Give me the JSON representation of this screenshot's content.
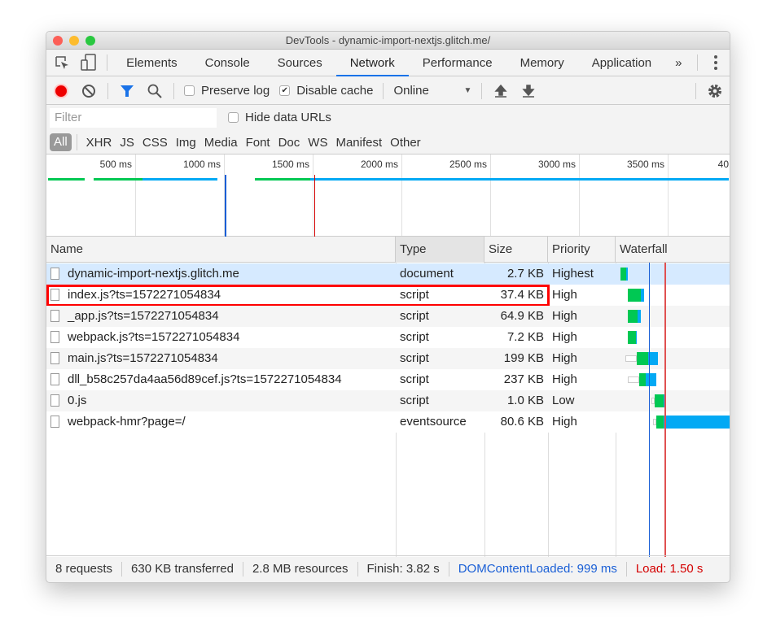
{
  "window": {
    "title": "DevTools - dynamic-import-nextjs.glitch.me/"
  },
  "tabs": [
    {
      "label": "Elements"
    },
    {
      "label": "Console"
    },
    {
      "label": "Sources"
    },
    {
      "label": "Network",
      "active": true
    },
    {
      "label": "Performance"
    },
    {
      "label": "Memory"
    },
    {
      "label": "Application"
    }
  ],
  "tabs_more": "»",
  "toolbar": {
    "preserve_log": "Preserve log",
    "preserve_log_checked": false,
    "disable_cache": "Disable cache",
    "disable_cache_checked": true,
    "throttle": "Online"
  },
  "filter": {
    "placeholder": "Filter",
    "hide_data_urls": "Hide data URLs"
  },
  "types": [
    "All",
    "XHR",
    "JS",
    "CSS",
    "Img",
    "Media",
    "Font",
    "Doc",
    "WS",
    "Manifest",
    "Other"
  ],
  "overview": {
    "ticks": [
      "500 ms",
      "1000 ms",
      "1500 ms",
      "2000 ms",
      "2500 ms",
      "3000 ms",
      "3500 ms",
      "40"
    ]
  },
  "columns": [
    "Name",
    "Type",
    "Size",
    "Priority",
    "Waterfall"
  ],
  "rows": [
    {
      "name": "dynamic-import-nextjs.glitch.me",
      "type": "document",
      "size": "2.7 KB",
      "priority": "Highest",
      "selected": true
    },
    {
      "name": "index.js?ts=1572271054834",
      "type": "script",
      "size": "37.4 KB",
      "priority": "High",
      "highlighted": true
    },
    {
      "name": "_app.js?ts=1572271054834",
      "type": "script",
      "size": "64.9 KB",
      "priority": "High"
    },
    {
      "name": "webpack.js?ts=1572271054834",
      "type": "script",
      "size": "7.2 KB",
      "priority": "High"
    },
    {
      "name": "main.js?ts=1572271054834",
      "type": "script",
      "size": "199 KB",
      "priority": "High"
    },
    {
      "name": "dll_b58c257da4aa56d89cef.js?ts=1572271054834",
      "type": "script",
      "size": "237 KB",
      "priority": "High"
    },
    {
      "name": "0.js",
      "type": "script",
      "size": "1.0 KB",
      "priority": "Low"
    },
    {
      "name": "webpack-hmr?page=/",
      "type": "eventsource",
      "size": "80.6 KB",
      "priority": "High"
    }
  ],
  "footer": {
    "requests": "8 requests",
    "transferred": "630 KB transferred",
    "resources": "2.8 MB resources",
    "finish": "Finish: 3.82 s",
    "dcl": "DOMContentLoaded: 999 ms",
    "load": "Load: 1.50 s"
  },
  "colors": {
    "accent": "#1a73e8",
    "dcl": "#1a5fd6",
    "load": "#d40000",
    "waiting": "#00c853",
    "download": "#03a9f4",
    "highlight": "#ff0000"
  }
}
